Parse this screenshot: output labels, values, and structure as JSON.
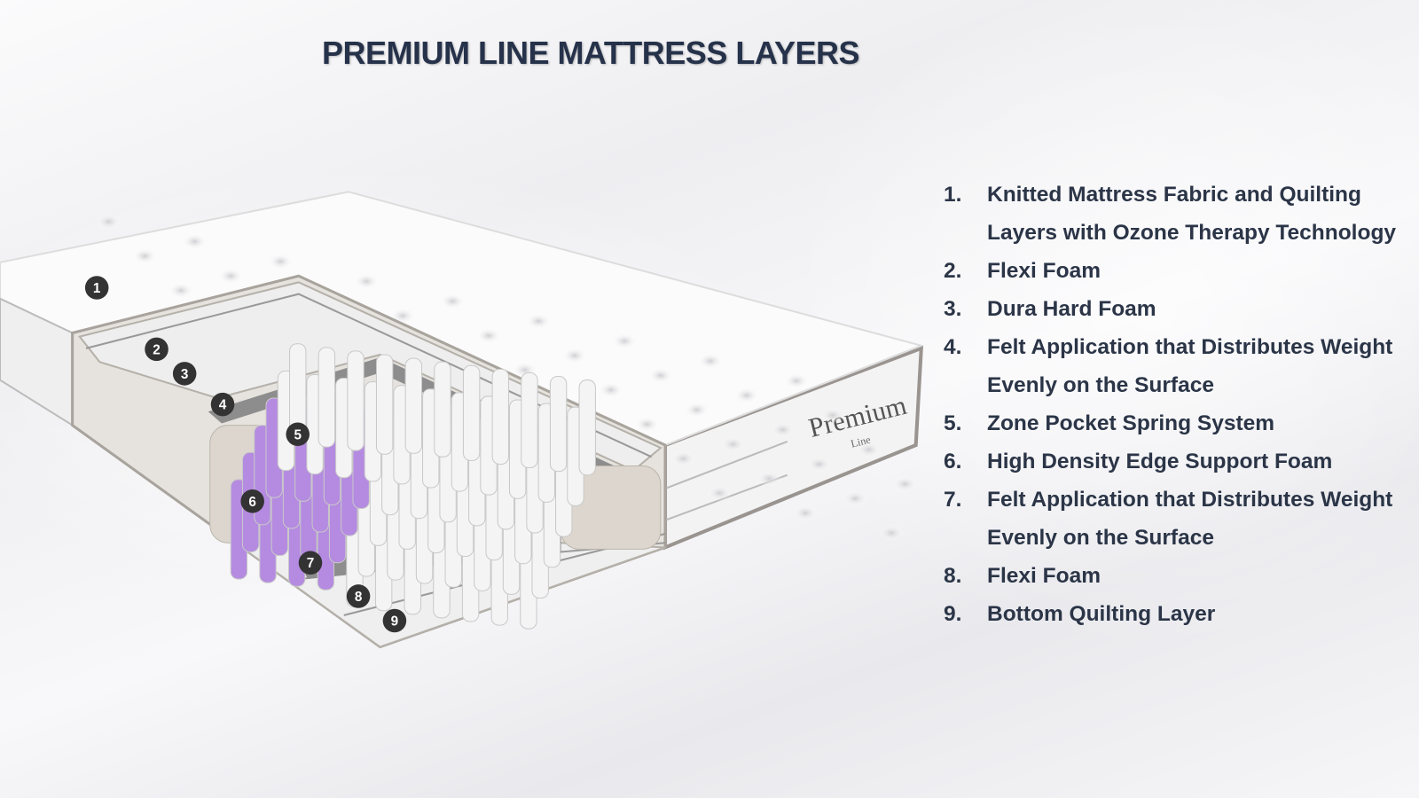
{
  "title": "PREMIUM LINE MATTRESS LAYERS",
  "brand_label": {
    "main": "Premium",
    "sub": "Line"
  },
  "colors": {
    "title": "#26324a",
    "text": "#2b3547",
    "badge": "#333333",
    "zone_springs": "#b48be0",
    "springs": "#f4f4f4",
    "foam": "#d9d4cc",
    "felt": "#8a8a8a"
  },
  "badges": [
    "1",
    "2",
    "3",
    "4",
    "5",
    "6",
    "7",
    "8",
    "9"
  ],
  "layers": [
    {
      "number": "1.",
      "text": "Knitted Mattress Fabric and Quilting Layers with Ozone Therapy Technology"
    },
    {
      "number": "2.",
      "text": "Flexi Foam"
    },
    {
      "number": "3.",
      "text": "Dura Hard Foam"
    },
    {
      "number": "4.",
      "text": "Felt Application that Distributes Weight Evenly on the Surface"
    },
    {
      "number": "5.",
      "text": "Zone Pocket Spring System"
    },
    {
      "number": "6.",
      "text": "High Density Edge Support Foam"
    },
    {
      "number": "7.",
      "text": "Felt Application that Distributes Weight Evenly on the Surface"
    },
    {
      "number": "8.",
      "text": "Flexi Foam"
    },
    {
      "number": "9.",
      "text": "Bottom Quilting Layer"
    }
  ]
}
